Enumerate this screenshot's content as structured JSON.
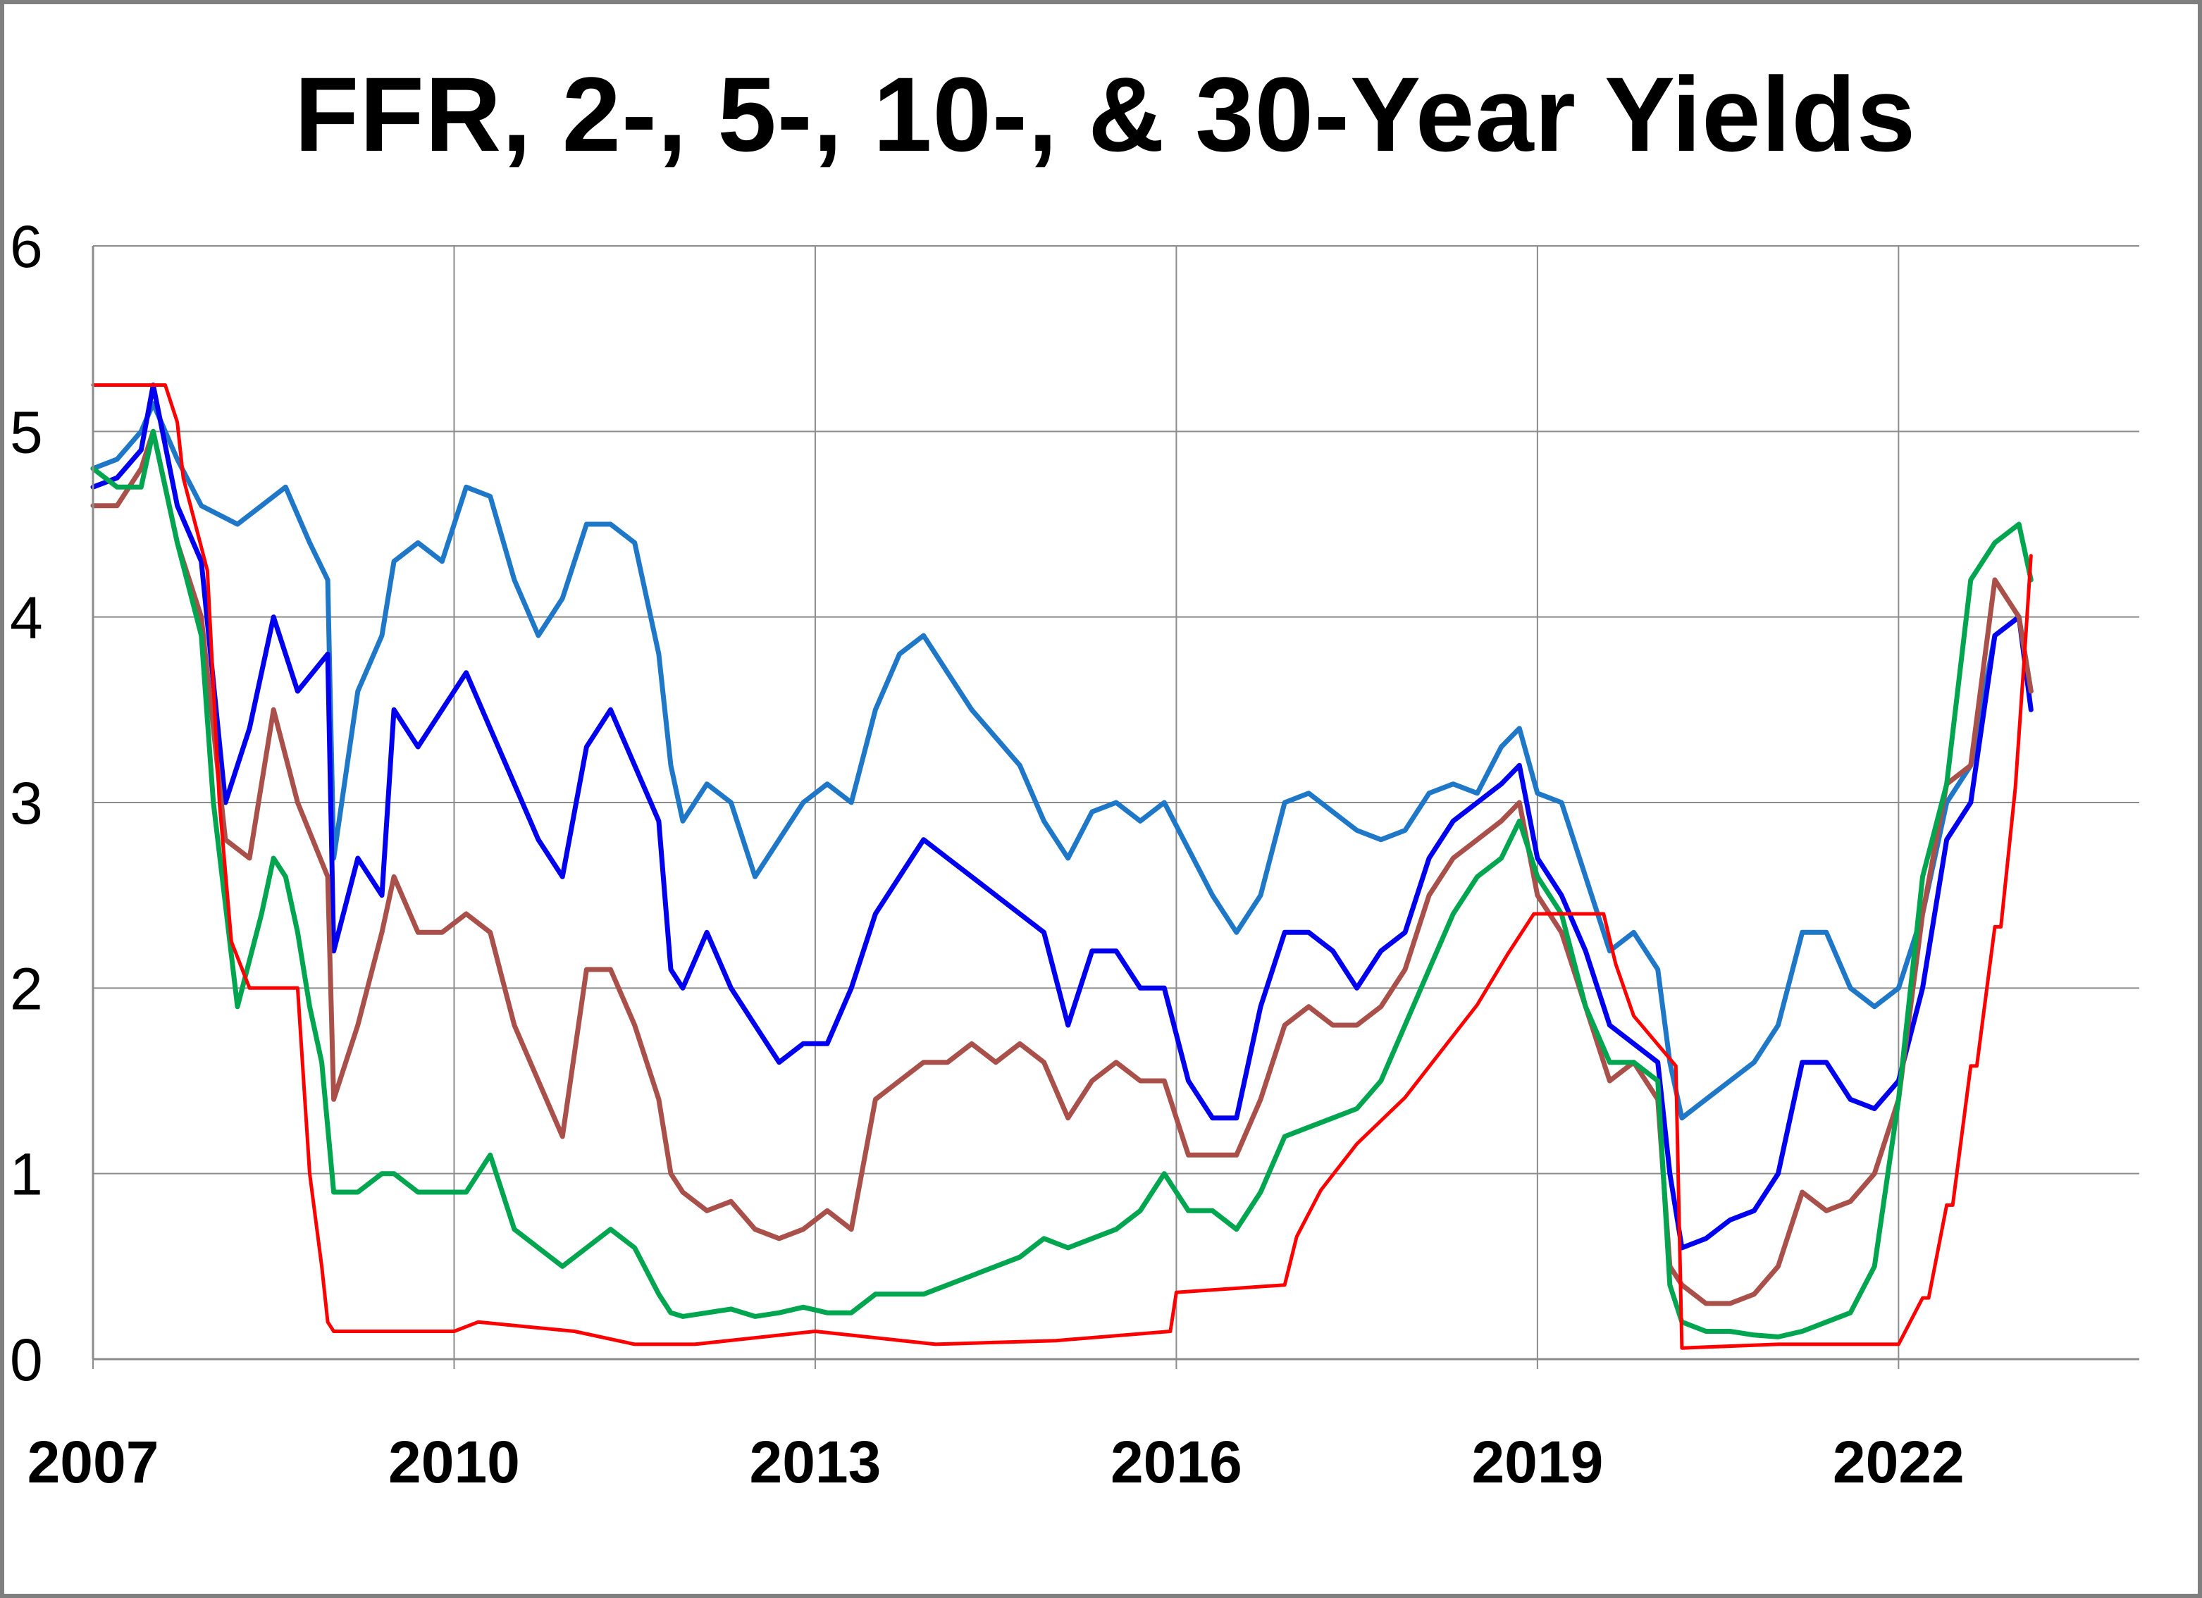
{
  "chart_data": {
    "type": "line",
    "title": "FFR, 2-, 5-, 10-, & 30-Year Yields",
    "xlabel": "",
    "ylabel": "",
    "x_tick_labels": [
      "2007",
      "2010",
      "2013",
      "2016",
      "2019",
      "2022"
    ],
    "y_tick_labels": [
      "0",
      "1",
      "2",
      "3",
      "4",
      "5",
      "6"
    ],
    "xlim": [
      2007.0,
      2024.0
    ],
    "ylim": [
      0,
      6
    ],
    "grid": true,
    "legend": "none",
    "series": [
      {
        "color": "#1f77c8",
        "x": [
          2007.0,
          2007.2,
          2007.4,
          2007.5,
          2007.7,
          2007.9,
          2008.2,
          2008.4,
          2008.6,
          2008.8,
          2008.95,
          2009.0,
          2009.2,
          2009.4,
          2009.5,
          2009.7,
          2009.9,
          2010.1,
          2010.3,
          2010.5,
          2010.7,
          2010.9,
          2011.1,
          2011.3,
          2011.5,
          2011.7,
          2011.8,
          2011.9,
          2012.1,
          2012.3,
          2012.5,
          2012.7,
          2012.9,
          2013.1,
          2013.3,
          2013.5,
          2013.7,
          2013.9,
          2014.1,
          2014.3,
          2014.5,
          2014.7,
          2014.9,
          2015.1,
          2015.3,
          2015.5,
          2015.7,
          2015.9,
          2016.1,
          2016.3,
          2016.5,
          2016.7,
          2016.9,
          2017.1,
          2017.3,
          2017.5,
          2017.7,
          2017.9,
          2018.1,
          2018.3,
          2018.5,
          2018.7,
          2018.85,
          2019.0,
          2019.2,
          2019.4,
          2019.6,
          2019.8,
          2020.0,
          2020.1,
          2020.2,
          2020.4,
          2020.6,
          2020.8,
          2021.0,
          2021.2,
          2021.4,
          2021.6,
          2021.8,
          2022.0,
          2022.2,
          2022.4,
          2022.6,
          2022.8,
          2023.0,
          2023.1
        ],
        "y": [
          4.8,
          4.85,
          5.0,
          5.15,
          4.85,
          4.6,
          4.5,
          4.6,
          4.7,
          4.4,
          4.2,
          2.7,
          3.6,
          3.9,
          4.3,
          4.4,
          4.3,
          4.7,
          4.65,
          4.2,
          3.9,
          4.1,
          4.5,
          4.5,
          4.4,
          3.8,
          3.2,
          2.9,
          3.1,
          3.0,
          2.6,
          2.8,
          3.0,
          3.1,
          3.0,
          3.5,
          3.8,
          3.9,
          3.7,
          3.5,
          3.35,
          3.2,
          2.9,
          2.7,
          2.95,
          3.0,
          2.9,
          3.0,
          2.75,
          2.5,
          2.3,
          2.5,
          3.0,
          3.05,
          2.95,
          2.85,
          2.8,
          2.85,
          3.05,
          3.1,
          3.05,
          3.3,
          3.4,
          3.05,
          3.0,
          2.6,
          2.2,
          2.3,
          2.1,
          1.6,
          1.3,
          1.4,
          1.5,
          1.6,
          1.8,
          2.3,
          2.3,
          2.0,
          1.9,
          2.0,
          2.4,
          3.0,
          3.2,
          3.9,
          4.0,
          3.6
        ]
      },
      {
        "color": "#0000ee",
        "x": [
          2007.0,
          2007.2,
          2007.4,
          2007.5,
          2007.7,
          2007.9,
          2008.1,
          2008.3,
          2008.5,
          2008.7,
          2008.95,
          2009.0,
          2009.2,
          2009.4,
          2009.5,
          2009.7,
          2009.9,
          2010.1,
          2010.3,
          2010.5,
          2010.7,
          2010.9,
          2011.1,
          2011.3,
          2011.5,
          2011.7,
          2011.8,
          2011.9,
          2012.1,
          2012.3,
          2012.5,
          2012.7,
          2012.9,
          2013.1,
          2013.3,
          2013.5,
          2013.7,
          2013.9,
          2014.1,
          2014.3,
          2014.5,
          2014.7,
          2014.9,
          2015.1,
          2015.3,
          2015.5,
          2015.7,
          2015.9,
          2016.1,
          2016.3,
          2016.5,
          2016.7,
          2016.9,
          2017.1,
          2017.3,
          2017.5,
          2017.7,
          2017.9,
          2018.1,
          2018.3,
          2018.5,
          2018.7,
          2018.85,
          2019.0,
          2019.2,
          2019.4,
          2019.6,
          2019.8,
          2020.0,
          2020.1,
          2020.2,
          2020.4,
          2020.6,
          2020.8,
          2021.0,
          2021.2,
          2021.4,
          2021.6,
          2021.8,
          2022.0,
          2022.2,
          2022.4,
          2022.6,
          2022.8,
          2023.0,
          2023.1
        ],
        "y": [
          4.7,
          4.75,
          4.9,
          5.25,
          4.6,
          4.3,
          3.0,
          3.4,
          4.0,
          3.6,
          3.8,
          2.2,
          2.7,
          2.5,
          3.5,
          3.3,
          3.5,
          3.7,
          3.4,
          3.1,
          2.8,
          2.6,
          3.3,
          3.5,
          3.2,
          2.9,
          2.1,
          2.0,
          2.3,
          2.0,
          1.8,
          1.6,
          1.7,
          1.7,
          2.0,
          2.4,
          2.6,
          2.8,
          2.7,
          2.6,
          2.5,
          2.4,
          2.3,
          1.8,
          2.2,
          2.2,
          2.0,
          2.0,
          1.5,
          1.3,
          1.3,
          1.9,
          2.3,
          2.3,
          2.2,
          2.0,
          2.2,
          2.3,
          2.7,
          2.9,
          3.0,
          3.1,
          3.2,
          2.7,
          2.5,
          2.2,
          1.8,
          1.7,
          1.6,
          1.0,
          0.6,
          0.65,
          0.75,
          0.8,
          1.0,
          1.6,
          1.6,
          1.4,
          1.35,
          1.5,
          2.0,
          2.8,
          3.0,
          3.9,
          4.0,
          3.5
        ]
      },
      {
        "color": "#a9504a",
        "x": [
          2007.0,
          2007.2,
          2007.4,
          2007.5,
          2007.7,
          2007.9,
          2008.1,
          2008.3,
          2008.5,
          2008.7,
          2008.95,
          2009.0,
          2009.2,
          2009.4,
          2009.5,
          2009.7,
          2009.9,
          2010.1,
          2010.3,
          2010.5,
          2010.7,
          2010.9,
          2011.1,
          2011.3,
          2011.5,
          2011.7,
          2011.8,
          2011.9,
          2012.1,
          2012.3,
          2012.5,
          2012.7,
          2012.9,
          2013.1,
          2013.3,
          2013.5,
          2013.7,
          2013.9,
          2014.1,
          2014.3,
          2014.5,
          2014.7,
          2014.9,
          2015.1,
          2015.3,
          2015.5,
          2015.7,
          2015.9,
          2016.1,
          2016.3,
          2016.5,
          2016.7,
          2016.9,
          2017.1,
          2017.3,
          2017.5,
          2017.7,
          2017.9,
          2018.1,
          2018.3,
          2018.5,
          2018.7,
          2018.85,
          2019.0,
          2019.2,
          2019.4,
          2019.6,
          2019.8,
          2020.0,
          2020.1,
          2020.2,
          2020.4,
          2020.6,
          2020.8,
          2021.0,
          2021.2,
          2021.4,
          2021.6,
          2021.8,
          2022.0,
          2022.2,
          2022.4,
          2022.6,
          2022.8,
          2023.0,
          2023.1
        ],
        "y": [
          4.6,
          4.6,
          4.8,
          5.0,
          4.4,
          4.0,
          2.8,
          2.7,
          3.5,
          3.0,
          2.6,
          1.4,
          1.8,
          2.3,
          2.6,
          2.3,
          2.3,
          2.4,
          2.3,
          1.8,
          1.5,
          1.2,
          2.1,
          2.1,
          1.8,
          1.4,
          1.0,
          0.9,
          0.8,
          0.85,
          0.7,
          0.65,
          0.7,
          0.8,
          0.7,
          1.4,
          1.5,
          1.6,
          1.6,
          1.7,
          1.6,
          1.7,
          1.6,
          1.3,
          1.5,
          1.6,
          1.5,
          1.5,
          1.1,
          1.1,
          1.1,
          1.4,
          1.8,
          1.9,
          1.8,
          1.8,
          1.9,
          2.1,
          2.5,
          2.7,
          2.8,
          2.9,
          3.0,
          2.5,
          2.3,
          1.9,
          1.5,
          1.6,
          1.4,
          0.5,
          0.4,
          0.3,
          0.3,
          0.35,
          0.5,
          0.9,
          0.8,
          0.85,
          1.0,
          1.4,
          2.4,
          3.1,
          3.2,
          4.2,
          4.0,
          3.6
        ]
      },
      {
        "color": "#00a550",
        "x": [
          2007.0,
          2007.2,
          2007.4,
          2007.5,
          2007.7,
          2007.9,
          2008.0,
          2008.2,
          2008.4,
          2008.5,
          2008.6,
          2008.7,
          2008.8,
          2008.9,
          2009.0,
          2009.2,
          2009.4,
          2009.5,
          2009.7,
          2009.9,
          2010.1,
          2010.3,
          2010.5,
          2010.7,
          2010.9,
          2011.1,
          2011.3,
          2011.5,
          2011.7,
          2011.8,
          2011.9,
          2012.1,
          2012.3,
          2012.5,
          2012.7,
          2012.9,
          2013.1,
          2013.3,
          2013.5,
          2013.7,
          2013.9,
          2014.1,
          2014.3,
          2014.5,
          2014.7,
          2014.9,
          2015.1,
          2015.3,
          2015.5,
          2015.7,
          2015.9,
          2016.1,
          2016.3,
          2016.5,
          2016.7,
          2016.9,
          2017.1,
          2017.3,
          2017.5,
          2017.7,
          2017.9,
          2018.1,
          2018.3,
          2018.5,
          2018.7,
          2018.85,
          2019.0,
          2019.2,
          2019.4,
          2019.6,
          2019.8,
          2020.0,
          2020.1,
          2020.2,
          2020.4,
          2020.6,
          2020.8,
          2021.0,
          2021.2,
          2021.4,
          2021.6,
          2021.8,
          2022.0,
          2022.2,
          2022.4,
          2022.6,
          2022.8,
          2023.0,
          2023.1
        ],
        "y": [
          4.8,
          4.7,
          4.7,
          5.0,
          4.4,
          3.9,
          3.0,
          1.9,
          2.4,
          2.7,
          2.6,
          2.3,
          1.9,
          1.6,
          0.9,
          0.9,
          1.0,
          1.0,
          0.9,
          0.9,
          0.9,
          1.1,
          0.7,
          0.6,
          0.5,
          0.6,
          0.7,
          0.6,
          0.35,
          0.25,
          0.23,
          0.25,
          0.27,
          0.23,
          0.25,
          0.28,
          0.25,
          0.25,
          0.35,
          0.35,
          0.35,
          0.4,
          0.45,
          0.5,
          0.55,
          0.65,
          0.6,
          0.65,
          0.7,
          0.8,
          1.0,
          0.8,
          0.8,
          0.7,
          0.9,
          1.2,
          1.25,
          1.3,
          1.35,
          1.5,
          1.8,
          2.1,
          2.4,
          2.6,
          2.7,
          2.9,
          2.6,
          2.4,
          1.9,
          1.6,
          1.6,
          1.5,
          0.4,
          0.2,
          0.15,
          0.15,
          0.13,
          0.12,
          0.15,
          0.2,
          0.25,
          0.5,
          1.4,
          2.6,
          3.1,
          4.2,
          4.4,
          4.5,
          4.2
        ]
      },
      {
        "color": "#ff0000",
        "x": [
          2007.0,
          2007.6,
          2007.7,
          2007.75,
          2007.85,
          2007.95,
          2008.05,
          2008.15,
          2008.3,
          2008.7,
          2008.75,
          2008.8,
          2008.9,
          2008.95,
          2009.0,
          2010.0,
          2010.2,
          2011.0,
          2011.5,
          2012.0,
          2013.0,
          2014.0,
          2015.0,
          2015.95,
          2016.0,
          2016.9,
          2017.0,
          2017.2,
          2017.5,
          2017.9,
          2018.2,
          2018.5,
          2018.75,
          2018.97,
          2019.55,
          2019.65,
          2019.8,
          2020.15,
          2020.2,
          2021.0,
          2022.0,
          2022.2,
          2022.25,
          2022.4,
          2022.45,
          2022.6,
          2022.65,
          2022.8,
          2022.85,
          2022.97,
          2023.05,
          2023.1
        ],
        "y": [
          5.25,
          5.25,
          5.05,
          4.75,
          4.5,
          4.25,
          3.0,
          2.25,
          2.0,
          2.0,
          1.5,
          1.0,
          0.5,
          0.2,
          0.15,
          0.15,
          0.2,
          0.15,
          0.08,
          0.08,
          0.15,
          0.08,
          0.1,
          0.15,
          0.36,
          0.4,
          0.66,
          0.91,
          1.16,
          1.41,
          1.66,
          1.91,
          2.18,
          2.4,
          2.4,
          2.13,
          1.85,
          1.58,
          0.06,
          0.08,
          0.08,
          0.33,
          0.33,
          0.83,
          0.83,
          1.58,
          1.58,
          2.33,
          2.33,
          3.08,
          3.83,
          4.33
        ]
      }
    ]
  }
}
